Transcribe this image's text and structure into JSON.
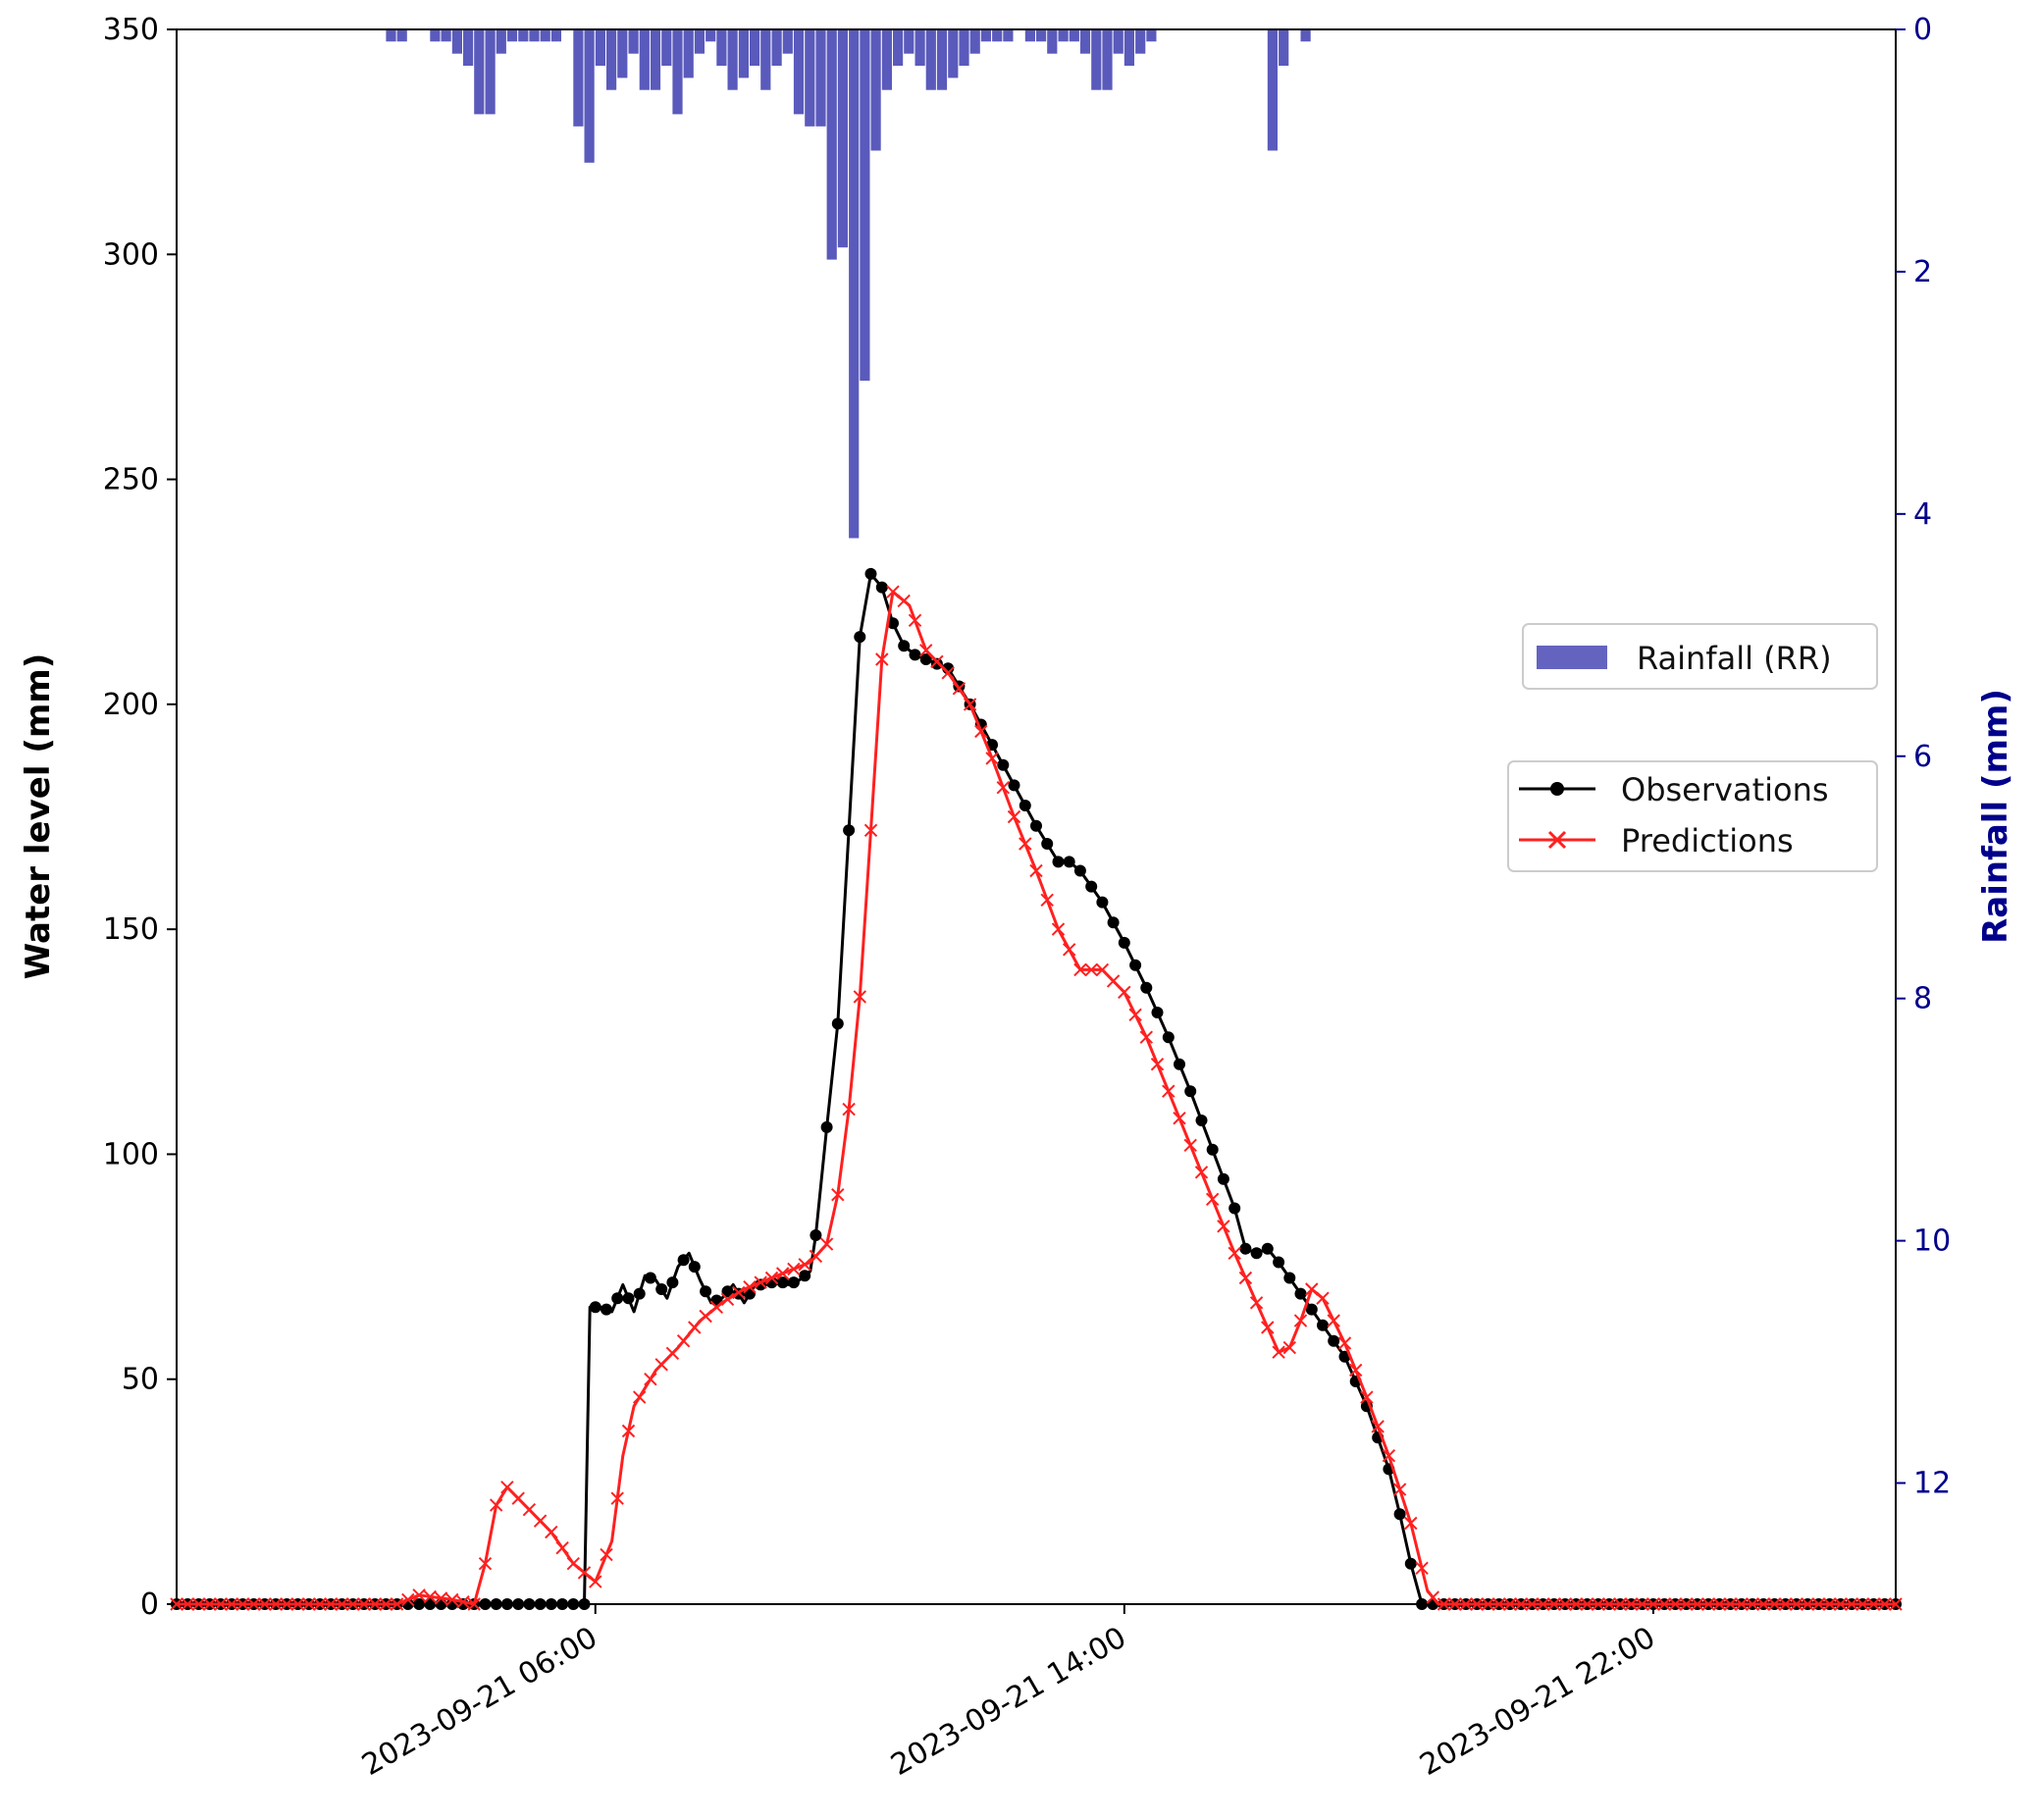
{
  "colors": {
    "observations": "#000000",
    "predictions": "#ff2020",
    "rainfall": "#3d3db0",
    "right_axis": "#00008b",
    "axis": "#000000"
  },
  "chart_data": {
    "type": "line",
    "title": "",
    "x_axis": {
      "type": "time",
      "range": [
        "2023-09-20 23:40",
        "2023-09-22 01:40"
      ],
      "tick_labels": [
        "2023-09-21 06:00",
        "2023-09-21 14:00",
        "2023-09-21 22:00"
      ]
    },
    "y_axis_left": {
      "label": "Water level (mm)",
      "range": [
        0,
        350
      ],
      "tick_labels": [
        "0",
        "50",
        "100",
        "150",
        "200",
        "250",
        "300",
        "350"
      ]
    },
    "y_axis_right": {
      "label": "Rainfall (mm)",
      "range": [
        0,
        13
      ],
      "inverted": true,
      "tick_labels": [
        "0",
        "2",
        "4",
        "6",
        "8",
        "10",
        "12"
      ]
    },
    "legend": {
      "rainfall": {
        "label": "Rainfall (RR)",
        "placement": "right, upper"
      },
      "lines": {
        "labels": [
          "Observations",
          "Predictions"
        ],
        "placement": "right, middle"
      }
    },
    "series": [
      {
        "name": "Observations",
        "marker": "circle",
        "points": [
          [
            "2023-09-20 23:40",
            0
          ],
          [
            "2023-09-21 02:00",
            0
          ],
          [
            "2023-09-21 04:20",
            0
          ],
          [
            "2023-09-21 05:50",
            0
          ],
          [
            "2023-09-21 05:55",
            66
          ],
          [
            "2023-09-21 06:05",
            66
          ],
          [
            "2023-09-21 06:15",
            65
          ],
          [
            "2023-09-21 06:25",
            71
          ],
          [
            "2023-09-21 06:35",
            65
          ],
          [
            "2023-09-21 06:45",
            73
          ],
          [
            "2023-09-21 06:55",
            72
          ],
          [
            "2023-09-21 07:05",
            68
          ],
          [
            "2023-09-21 07:15",
            75
          ],
          [
            "2023-09-21 07:25",
            78
          ],
          [
            "2023-09-21 07:35",
            72
          ],
          [
            "2023-09-21 07:45",
            67
          ],
          [
            "2023-09-21 07:55",
            68
          ],
          [
            "2023-09-21 08:05",
            71
          ],
          [
            "2023-09-21 08:15",
            67
          ],
          [
            "2023-09-21 08:25",
            71
          ],
          [
            "2023-09-21 08:35",
            71
          ],
          [
            "2023-09-21 08:45",
            72
          ],
          [
            "2023-09-21 08:55",
            71
          ],
          [
            "2023-09-21 09:05",
            72
          ],
          [
            "2023-09-21 09:15",
            74
          ],
          [
            "2023-09-21 09:20",
            82
          ],
          [
            "2023-09-21 09:30",
            106
          ],
          [
            "2023-09-21 09:40",
            129
          ],
          [
            "2023-09-21 09:50",
            172
          ],
          [
            "2023-09-21 10:00",
            215
          ],
          [
            "2023-09-21 10:10",
            229
          ],
          [
            "2023-09-21 10:20",
            226
          ],
          [
            "2023-09-21 10:30",
            218
          ],
          [
            "2023-09-21 10:40",
            213
          ],
          [
            "2023-09-21 10:50",
            211
          ],
          [
            "2023-09-21 11:00",
            210
          ],
          [
            "2023-09-21 11:20",
            208
          ],
          [
            "2023-09-21 11:40",
            200
          ],
          [
            "2023-09-21 12:00",
            191
          ],
          [
            "2023-09-21 12:20",
            182
          ],
          [
            "2023-09-21 12:40",
            173
          ],
          [
            "2023-09-21 13:00",
            165
          ],
          [
            "2023-09-21 13:10",
            165
          ],
          [
            "2023-09-21 13:20",
            163
          ],
          [
            "2023-09-21 13:40",
            156
          ],
          [
            "2023-09-21 14:00",
            147
          ],
          [
            "2023-09-21 14:20",
            137
          ],
          [
            "2023-09-21 14:40",
            126
          ],
          [
            "2023-09-21 15:00",
            114
          ],
          [
            "2023-09-21 15:20",
            101
          ],
          [
            "2023-09-21 15:40",
            88
          ],
          [
            "2023-09-21 15:50",
            79
          ],
          [
            "2023-09-21 16:00",
            78
          ],
          [
            "2023-09-21 16:10",
            79
          ],
          [
            "2023-09-21 16:20",
            76
          ],
          [
            "2023-09-21 16:40",
            69
          ],
          [
            "2023-09-21 17:00",
            62
          ],
          [
            "2023-09-21 17:20",
            55
          ],
          [
            "2023-09-21 17:40",
            44
          ],
          [
            "2023-09-21 18:00",
            30
          ],
          [
            "2023-09-21 18:10",
            20
          ],
          [
            "2023-09-21 18:20",
            9
          ],
          [
            "2023-09-21 18:30",
            0
          ],
          [
            "2023-09-21 20:00",
            0
          ],
          [
            "2023-09-21 22:00",
            0
          ],
          [
            "2023-09-22 01:40",
            0
          ]
        ]
      },
      {
        "name": "Predictions",
        "marker": "x",
        "points": [
          [
            "2023-09-20 23:40",
            0
          ],
          [
            "2023-09-21 02:00",
            0
          ],
          [
            "2023-09-21 03:00",
            0
          ],
          [
            "2023-09-21 03:20",
            2
          ],
          [
            "2023-09-21 03:50",
            1
          ],
          [
            "2023-09-21 04:10",
            0
          ],
          [
            "2023-09-21 04:20",
            9
          ],
          [
            "2023-09-21 04:30",
            22
          ],
          [
            "2023-09-21 04:40",
            26
          ],
          [
            "2023-09-21 05:00",
            21
          ],
          [
            "2023-09-21 05:20",
            16
          ],
          [
            "2023-09-21 05:40",
            9
          ],
          [
            "2023-09-21 06:00",
            5
          ],
          [
            "2023-09-21 06:15",
            14
          ],
          [
            "2023-09-21 06:25",
            33
          ],
          [
            "2023-09-21 06:35",
            44
          ],
          [
            "2023-09-21 06:55",
            52
          ],
          [
            "2023-09-21 07:15",
            57
          ],
          [
            "2023-09-21 07:35",
            63
          ],
          [
            "2023-09-21 07:55",
            67
          ],
          [
            "2023-09-21 08:15",
            70
          ],
          [
            "2023-09-21 08:35",
            72
          ],
          [
            "2023-09-21 08:55",
            74
          ],
          [
            "2023-09-21 09:15",
            76
          ],
          [
            "2023-09-21 09:30",
            80
          ],
          [
            "2023-09-21 09:40",
            91
          ],
          [
            "2023-09-21 09:50",
            110
          ],
          [
            "2023-09-21 10:00",
            135
          ],
          [
            "2023-09-21 10:10",
            172
          ],
          [
            "2023-09-21 10:20",
            210
          ],
          [
            "2023-09-21 10:30",
            225
          ],
          [
            "2023-09-21 10:45",
            222
          ],
          [
            "2023-09-21 11:00",
            212
          ],
          [
            "2023-09-21 11:20",
            207
          ],
          [
            "2023-09-21 11:40",
            200
          ],
          [
            "2023-09-21 12:00",
            188
          ],
          [
            "2023-09-21 12:20",
            175
          ],
          [
            "2023-09-21 12:40",
            163
          ],
          [
            "2023-09-21 13:00",
            150
          ],
          [
            "2023-09-21 13:20",
            141
          ],
          [
            "2023-09-21 13:40",
            141
          ],
          [
            "2023-09-21 14:00",
            136
          ],
          [
            "2023-09-21 14:20",
            126
          ],
          [
            "2023-09-21 14:40",
            114
          ],
          [
            "2023-09-21 15:00",
            102
          ],
          [
            "2023-09-21 15:20",
            90
          ],
          [
            "2023-09-21 15:40",
            78
          ],
          [
            "2023-09-21 16:00",
            67
          ],
          [
            "2023-09-21 16:20",
            56
          ],
          [
            "2023-09-21 16:30",
            57
          ],
          [
            "2023-09-21 16:40",
            63
          ],
          [
            "2023-09-21 16:50",
            70
          ],
          [
            "2023-09-21 17:00",
            68
          ],
          [
            "2023-09-21 17:20",
            58
          ],
          [
            "2023-09-21 17:40",
            46
          ],
          [
            "2023-09-21 18:00",
            33
          ],
          [
            "2023-09-21 18:20",
            18
          ],
          [
            "2023-09-21 18:35",
            3
          ],
          [
            "2023-09-21 18:45",
            0
          ],
          [
            "2023-09-21 22:00",
            0
          ],
          [
            "2023-09-22 01:40",
            0
          ]
        ]
      },
      {
        "name": "Rainfall (RR)",
        "type": "bar",
        "axis": "right",
        "bar_width_minutes": 10,
        "points": [
          [
            "2023-09-21 02:55",
            0.1
          ],
          [
            "2023-09-21 03:05",
            0.1
          ],
          [
            "2023-09-21 03:35",
            0.1
          ],
          [
            "2023-09-21 03:45",
            0.1
          ],
          [
            "2023-09-21 03:55",
            0.2
          ],
          [
            "2023-09-21 04:05",
            0.3
          ],
          [
            "2023-09-21 04:15",
            0.7
          ],
          [
            "2023-09-21 04:25",
            0.7
          ],
          [
            "2023-09-21 04:35",
            0.2
          ],
          [
            "2023-09-21 04:45",
            0.1
          ],
          [
            "2023-09-21 04:55",
            0.1
          ],
          [
            "2023-09-21 05:05",
            0.1
          ],
          [
            "2023-09-21 05:15",
            0.1
          ],
          [
            "2023-09-21 05:25",
            0.1
          ],
          [
            "2023-09-21 05:45",
            0.8
          ],
          [
            "2023-09-21 05:55",
            1.1
          ],
          [
            "2023-09-21 06:05",
            0.3
          ],
          [
            "2023-09-21 06:15",
            0.5
          ],
          [
            "2023-09-21 06:25",
            0.4
          ],
          [
            "2023-09-21 06:35",
            0.2
          ],
          [
            "2023-09-21 06:45",
            0.5
          ],
          [
            "2023-09-21 06:55",
            0.5
          ],
          [
            "2023-09-21 07:05",
            0.3
          ],
          [
            "2023-09-21 07:15",
            0.7
          ],
          [
            "2023-09-21 07:25",
            0.4
          ],
          [
            "2023-09-21 07:35",
            0.2
          ],
          [
            "2023-09-21 07:45",
            0.1
          ],
          [
            "2023-09-21 07:55",
            0.3
          ],
          [
            "2023-09-21 08:05",
            0.5
          ],
          [
            "2023-09-21 08:15",
            0.4
          ],
          [
            "2023-09-21 08:25",
            0.3
          ],
          [
            "2023-09-21 08:35",
            0.5
          ],
          [
            "2023-09-21 08:45",
            0.3
          ],
          [
            "2023-09-21 08:55",
            0.2
          ],
          [
            "2023-09-21 09:05",
            0.7
          ],
          [
            "2023-09-21 09:15",
            0.8
          ],
          [
            "2023-09-21 09:25",
            0.8
          ],
          [
            "2023-09-21 09:35",
            1.9
          ],
          [
            "2023-09-21 09:45",
            1.8
          ],
          [
            "2023-09-21 09:55",
            4.2
          ],
          [
            "2023-09-21 10:05",
            2.9
          ],
          [
            "2023-09-21 10:15",
            1.0
          ],
          [
            "2023-09-21 10:25",
            0.5
          ],
          [
            "2023-09-21 10:35",
            0.3
          ],
          [
            "2023-09-21 10:45",
            0.2
          ],
          [
            "2023-09-21 10:55",
            0.3
          ],
          [
            "2023-09-21 11:05",
            0.5
          ],
          [
            "2023-09-21 11:15",
            0.5
          ],
          [
            "2023-09-21 11:25",
            0.4
          ],
          [
            "2023-09-21 11:35",
            0.3
          ],
          [
            "2023-09-21 11:45",
            0.2
          ],
          [
            "2023-09-21 11:55",
            0.1
          ],
          [
            "2023-09-21 12:05",
            0.1
          ],
          [
            "2023-09-21 12:15",
            0.1
          ],
          [
            "2023-09-21 12:35",
            0.1
          ],
          [
            "2023-09-21 12:45",
            0.1
          ],
          [
            "2023-09-21 12:55",
            0.2
          ],
          [
            "2023-09-21 13:05",
            0.1
          ],
          [
            "2023-09-21 13:15",
            0.1
          ],
          [
            "2023-09-21 13:25",
            0.2
          ],
          [
            "2023-09-21 13:35",
            0.5
          ],
          [
            "2023-09-21 13:45",
            0.5
          ],
          [
            "2023-09-21 13:55",
            0.2
          ],
          [
            "2023-09-21 14:05",
            0.3
          ],
          [
            "2023-09-21 14:15",
            0.2
          ],
          [
            "2023-09-21 14:25",
            0.1
          ],
          [
            "2023-09-21 16:15",
            1.0
          ],
          [
            "2023-09-21 16:25",
            0.3
          ],
          [
            "2023-09-21 16:45",
            0.1
          ]
        ]
      }
    ]
  }
}
